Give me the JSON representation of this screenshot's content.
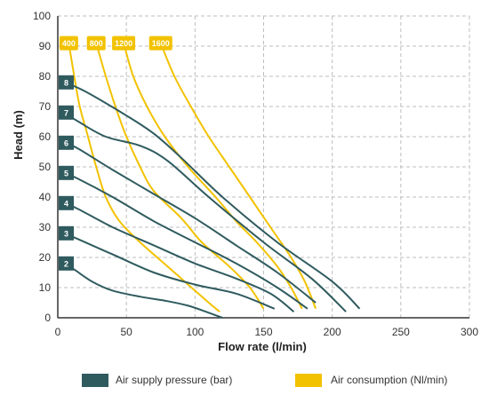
{
  "chart_data": {
    "type": "line",
    "xlabel": "Flow rate (l/min)",
    "ylabel": "Head (m)",
    "xlim": [
      0,
      300
    ],
    "ylim": [
      0,
      100
    ],
    "x_ticks": [
      "0",
      "50",
      "100",
      "150",
      "200",
      "250",
      "300"
    ],
    "y_ticks": [
      "0",
      "10",
      "20",
      "30",
      "40",
      "50",
      "60",
      "70",
      "80",
      "90",
      "100"
    ],
    "grid": true,
    "legend_position": "bottom",
    "colors": {
      "pressure": "#2f5b5f",
      "consumption": "#f2c200",
      "grid": "#bdbdbd",
      "axis": "#333333"
    },
    "legend": [
      {
        "label": "Air supply pressure (bar)",
        "kind": "pressure"
      },
      {
        "label": "Air consumption (Nl/min)",
        "kind": "consumption"
      }
    ],
    "pressure_series": [
      {
        "name": "2",
        "points": [
          [
            5,
            18
          ],
          [
            12,
            16
          ],
          [
            25,
            12
          ],
          [
            40,
            9
          ],
          [
            60,
            7
          ],
          [
            80,
            5.5
          ],
          [
            95,
            4
          ],
          [
            108,
            2
          ],
          [
            120,
            0
          ]
        ]
      },
      {
        "name": "3",
        "points": [
          [
            5,
            28
          ],
          [
            15,
            26
          ],
          [
            40,
            21
          ],
          [
            70,
            15
          ],
          [
            100,
            11
          ],
          [
            130,
            8
          ],
          [
            158,
            3
          ]
        ]
      },
      {
        "name": "4",
        "points": [
          [
            5,
            38
          ],
          [
            15,
            36
          ],
          [
            40,
            30
          ],
          [
            70,
            24
          ],
          [
            100,
            18
          ],
          [
            130,
            13
          ],
          [
            155,
            8
          ],
          [
            172,
            2
          ]
        ]
      },
      {
        "name": "5",
        "points": [
          [
            5,
            48
          ],
          [
            15,
            46
          ],
          [
            40,
            40
          ],
          [
            70,
            32
          ],
          [
            100,
            25
          ],
          [
            130,
            18
          ],
          [
            160,
            10
          ],
          [
            182,
            3
          ]
        ]
      },
      {
        "name": "6",
        "points": [
          [
            5,
            58
          ],
          [
            15,
            56
          ],
          [
            40,
            49
          ],
          [
            70,
            41
          ],
          [
            100,
            33
          ],
          [
            130,
            24
          ],
          [
            160,
            15
          ],
          [
            188,
            5
          ]
        ]
      },
      {
        "name": "7",
        "points": [
          [
            5,
            68
          ],
          [
            15,
            65
          ],
          [
            35,
            60
          ],
          [
            60,
            57
          ],
          [
            80,
            52
          ],
          [
            110,
            40
          ],
          [
            150,
            25
          ],
          [
            185,
            13
          ],
          [
            210,
            2
          ]
        ]
      },
      {
        "name": "8",
        "points": [
          [
            5,
            78
          ],
          [
            20,
            75
          ],
          [
            50,
            67
          ],
          [
            70,
            61
          ],
          [
            90,
            53
          ],
          [
            120,
            40
          ],
          [
            160,
            25
          ],
          [
            200,
            12
          ],
          [
            220,
            3
          ]
        ]
      }
    ],
    "consumption_series": [
      {
        "name": "400",
        "points": [
          [
            8,
            91
          ],
          [
            12,
            80
          ],
          [
            16,
            70
          ],
          [
            22,
            60
          ],
          [
            28,
            50
          ],
          [
            35,
            40
          ],
          [
            45,
            32
          ],
          [
            60,
            25
          ],
          [
            80,
            17
          ],
          [
            95,
            11
          ],
          [
            110,
            5
          ],
          [
            118,
            2
          ]
        ]
      },
      {
        "name": "800",
        "points": [
          [
            28,
            91
          ],
          [
            35,
            80
          ],
          [
            42,
            70
          ],
          [
            50,
            60
          ],
          [
            60,
            50
          ],
          [
            70,
            42
          ],
          [
            90,
            33
          ],
          [
            105,
            25
          ],
          [
            125,
            17
          ],
          [
            140,
            10
          ],
          [
            150,
            3
          ]
        ]
      },
      {
        "name": "1200",
        "points": [
          [
            48,
            91
          ],
          [
            55,
            80
          ],
          [
            65,
            70
          ],
          [
            78,
            60
          ],
          [
            95,
            50
          ],
          [
            115,
            40
          ],
          [
            130,
            32
          ],
          [
            145,
            25
          ],
          [
            160,
            17
          ],
          [
            170,
            10
          ],
          [
            178,
            3
          ]
        ]
      },
      {
        "name": "1600",
        "points": [
          [
            75,
            91
          ],
          [
            85,
            80
          ],
          [
            97,
            70
          ],
          [
            110,
            60
          ],
          [
            125,
            50
          ],
          [
            140,
            40
          ],
          [
            155,
            30
          ],
          [
            170,
            20
          ],
          [
            180,
            12
          ],
          [
            188,
            3
          ]
        ]
      }
    ]
  }
}
